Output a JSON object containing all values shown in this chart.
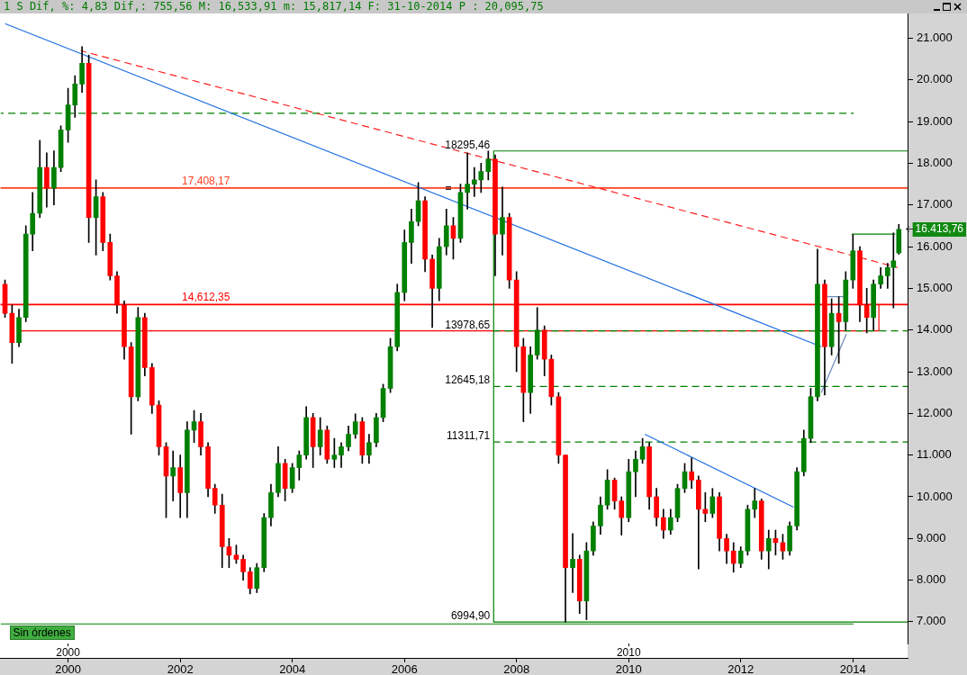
{
  "chart_data": {
    "type": "candlestick",
    "title": "1 S Dif, %: 4,83 Dif,: 755,56 M: 16,533,91 m: 15,817,14 F: 31-10-2014 P : 20,095,75",
    "x": [
      "1998-11-16",
      "1999-01-01",
      "1999-02-15",
      "1999-04-01",
      "1999-05-15",
      "1999-07-01",
      "1999-08-15",
      "1999-10-01",
      "1999-11-15",
      "2000-01-01",
      "2000-02-15",
      "2000-04-01",
      "2000-05-15",
      "2000-07-01",
      "2000-08-15",
      "2000-10-01",
      "2000-11-15",
      "2001-01-01",
      "2001-02-15",
      "2001-04-01",
      "2001-05-15",
      "2001-07-01",
      "2001-08-15",
      "2001-10-01",
      "2001-11-15",
      "2002-01-01",
      "2002-02-15",
      "2002-04-01",
      "2002-05-15",
      "2002-07-01",
      "2002-08-15",
      "2002-10-01",
      "2002-11-15",
      "2003-01-01",
      "2003-02-15",
      "2003-04-01",
      "2003-05-15",
      "2003-07-01",
      "2003-08-15",
      "2003-10-01",
      "2003-11-15",
      "2004-01-01",
      "2004-02-15",
      "2004-04-01",
      "2004-05-15",
      "2004-07-01",
      "2004-08-15",
      "2004-10-01",
      "2004-11-15",
      "2005-01-01",
      "2005-02-15",
      "2005-04-01",
      "2005-05-15",
      "2005-07-01",
      "2005-08-15",
      "2005-10-01",
      "2005-11-15",
      "2006-01-01",
      "2006-02-15",
      "2006-04-01",
      "2006-05-15",
      "2006-07-01",
      "2006-08-15",
      "2006-10-01",
      "2006-11-15",
      "2007-01-01",
      "2007-02-15",
      "2007-04-01",
      "2007-05-15",
      "2007-07-01",
      "2007-08-15",
      "2007-10-01",
      "2007-11-15",
      "2008-01-01",
      "2008-02-15",
      "2008-04-01",
      "2008-05-15",
      "2008-07-01",
      "2008-08-15",
      "2008-10-01",
      "2008-11-15",
      "2009-01-01",
      "2009-02-15",
      "2009-04-01",
      "2009-05-15",
      "2009-07-01",
      "2009-08-15",
      "2009-10-01",
      "2009-11-15",
      "2010-01-01",
      "2010-02-15",
      "2010-04-01",
      "2010-05-15",
      "2010-07-01",
      "2010-08-15",
      "2010-10-01",
      "2010-11-15",
      "2011-01-01",
      "2011-02-15",
      "2011-04-01",
      "2011-05-15",
      "2011-07-01",
      "2011-08-15",
      "2011-10-01",
      "2011-11-15",
      "2012-01-01",
      "2012-02-15",
      "2012-04-01",
      "2012-05-15",
      "2012-07-01",
      "2012-08-15",
      "2012-10-01",
      "2012-11-15",
      "2013-01-01",
      "2013-02-15",
      "2013-04-01",
      "2013-05-15",
      "2013-07-01",
      "2013-08-15",
      "2013-10-01",
      "2013-11-15",
      "2014-01-01",
      "2014-02-15",
      "2014-04-01",
      "2014-05-15",
      "2014-07-01",
      "2014-08-15",
      "2014-09-22",
      "2014-10-27"
    ],
    "ohlc": [
      [
        15100,
        15200,
        14300,
        14400
      ],
      [
        14400,
        14600,
        13200,
        13700
      ],
      [
        13700,
        14500,
        13600,
        14300
      ],
      [
        14300,
        16500,
        14200,
        16300
      ],
      [
        16300,
        17300,
        15900,
        16800
      ],
      [
        16800,
        18550,
        16700,
        17900
      ],
      [
        17900,
        18250,
        16950,
        17400
      ],
      [
        17400,
        18300,
        17000,
        17900
      ],
      [
        17900,
        18900,
        17800,
        18800
      ],
      [
        18800,
        19800,
        18500,
        19400
      ],
      [
        19400,
        20100,
        19100,
        19900
      ],
      [
        19900,
        20800,
        19700,
        20400
      ],
      [
        20400,
        20600,
        16100,
        16700
      ],
      [
        16700,
        17600,
        15800,
        17200
      ],
      [
        17200,
        17300,
        15900,
        16100
      ],
      [
        16100,
        16300,
        15200,
        15300
      ],
      [
        15300,
        15400,
        14400,
        14600
      ],
      [
        14600,
        14700,
        13300,
        13600
      ],
      [
        13600,
        13700,
        11500,
        12400
      ],
      [
        12400,
        14540,
        12300,
        14300
      ],
      [
        14300,
        14400,
        12900,
        13100
      ],
      [
        13100,
        13200,
        12000,
        12200
      ],
      [
        12200,
        12300,
        11000,
        11200
      ],
      [
        11200,
        11300,
        9500,
        10500
      ],
      [
        10500,
        11100,
        9900,
        10700
      ],
      [
        10700,
        11000,
        9500,
        10100
      ],
      [
        10100,
        11800,
        9500,
        11600
      ],
      [
        11600,
        12070,
        11300,
        11800
      ],
      [
        11800,
        12000,
        11000,
        11200
      ],
      [
        11200,
        11300,
        10000,
        10200
      ],
      [
        10200,
        10300,
        9600,
        9800
      ],
      [
        9800,
        10060,
        8300,
        8800
      ],
      [
        8800,
        9000,
        8300,
        8600
      ],
      [
        8600,
        8840,
        8400,
        8500
      ],
      [
        8500,
        8600,
        8000,
        8200
      ],
      [
        8200,
        8300,
        7670,
        7800
      ],
      [
        7800,
        8400,
        7700,
        8300
      ],
      [
        8300,
        9600,
        8200,
        9500
      ],
      [
        9500,
        10300,
        9300,
        10100
      ],
      [
        10100,
        11200,
        10000,
        10800
      ],
      [
        10800,
        10900,
        9900,
        10200
      ],
      [
        10200,
        10800,
        10100,
        10700
      ],
      [
        10700,
        11100,
        10400,
        11000
      ],
      [
        11000,
        12160,
        10900,
        11900
      ],
      [
        11900,
        12000,
        10700,
        11200
      ],
      [
        11200,
        11900,
        11000,
        11600
      ],
      [
        11600,
        11700,
        10800,
        10900
      ],
      [
        10900,
        11400,
        10700,
        11000
      ],
      [
        11000,
        11300,
        10700,
        11200
      ],
      [
        11200,
        11700,
        11100,
        11500
      ],
      [
        11500,
        11990,
        11400,
        11800
      ],
      [
        11800,
        11900,
        10800,
        11000
      ],
      [
        11000,
        11500,
        10800,
        11300
      ],
      [
        11300,
        12000,
        11200,
        11900
      ],
      [
        11900,
        12700,
        11800,
        12600
      ],
      [
        12600,
        13800,
        12500,
        13600
      ],
      [
        13600,
        15100,
        13500,
        14900
      ],
      [
        14900,
        16400,
        14700,
        16100
      ],
      [
        16100,
        16900,
        15600,
        16600
      ],
      [
        16600,
        17540,
        16500,
        17100
      ],
      [
        17100,
        17200,
        15400,
        15700
      ],
      [
        15700,
        15800,
        14060,
        15000
      ],
      [
        15000,
        16200,
        14700,
        16000
      ],
      [
        16000,
        16900,
        15800,
        16500
      ],
      [
        16500,
        16700,
        15700,
        16200
      ],
      [
        16200,
        17500,
        16100,
        17300
      ],
      [
        17300,
        18250,
        16900,
        17500
      ],
      [
        17500,
        17900,
        17200,
        17600
      ],
      [
        17600,
        18000,
        17300,
        17800
      ],
      [
        17800,
        18295.46,
        17600,
        18100
      ],
      [
        18100,
        18200,
        15300,
        16300
      ],
      [
        16300,
        17430,
        15800,
        16700
      ],
      [
        16700,
        16800,
        15000,
        15200
      ],
      [
        15200,
        15400,
        13000,
        13600
      ],
      [
        13600,
        13800,
        11800,
        12500
      ],
      [
        12500,
        13600,
        12000,
        13400
      ],
      [
        13400,
        14540,
        13300,
        14000
      ],
      [
        14000,
        14100,
        12900,
        13300
      ],
      [
        13300,
        13400,
        12200,
        12400
      ],
      [
        12400,
        12500,
        10800,
        11000
      ],
      [
        11000,
        11000,
        6994.9,
        8300
      ],
      [
        8300,
        9120,
        7700,
        8500
      ],
      [
        8500,
        8600,
        7200,
        7500
      ],
      [
        7500,
        8900,
        7050,
        8700
      ],
      [
        8700,
        9400,
        8600,
        9300
      ],
      [
        9300,
        10000,
        9100,
        9800
      ],
      [
        9800,
        10650,
        9700,
        10400
      ],
      [
        10400,
        10450,
        9700,
        9900
      ],
      [
        9900,
        10000,
        9080,
        9500
      ],
      [
        9500,
        10900,
        9400,
        10600
      ],
      [
        10600,
        11100,
        10000,
        10900
      ],
      [
        10900,
        11400,
        10800,
        11200
      ],
      [
        11200,
        11300,
        9700,
        10000
      ],
      [
        10000,
        10200,
        9300,
        9500
      ],
      [
        9500,
        9700,
        9000,
        9200
      ],
      [
        9200,
        9700,
        9100,
        9500
      ],
      [
        9500,
        10300,
        9400,
        10200
      ],
      [
        10200,
        10800,
        10100,
        10600
      ],
      [
        10600,
        10930,
        10200,
        10400
      ],
      [
        10400,
        10500,
        8270,
        9700
      ],
      [
        9700,
        10100,
        9400,
        9600
      ],
      [
        9600,
        10200,
        9500,
        10000
      ],
      [
        10000,
        10100,
        8700,
        9000
      ],
      [
        9000,
        9100,
        8400,
        8700
      ],
      [
        8700,
        8900,
        8190,
        8400
      ],
      [
        8400,
        8800,
        8300,
        8700
      ],
      [
        8700,
        9800,
        8600,
        9700
      ],
      [
        9700,
        10200,
        9500,
        9900
      ],
      [
        9900,
        9950,
        8500,
        8700
      ],
      [
        8700,
        9200,
        8270,
        9000
      ],
      [
        9000,
        9200,
        8600,
        8900
      ],
      [
        8900,
        9100,
        8500,
        8700
      ],
      [
        8700,
        9400,
        8600,
        9300
      ],
      [
        9300,
        10700,
        9200,
        10600
      ],
      [
        10600,
        11600,
        10500,
        11400
      ],
      [
        11400,
        12600,
        11300,
        12400
      ],
      [
        12400,
        15940,
        12300,
        15100
      ],
      [
        15100,
        15200,
        12440,
        13600
      ],
      [
        13600,
        14750,
        13400,
        14400
      ],
      [
        14400,
        14800,
        13200,
        14200
      ],
      [
        14200,
        15400,
        14000,
        15200
      ],
      [
        15200,
        16290,
        15000,
        15900
      ],
      [
        15900,
        16000,
        14200,
        14600
      ],
      [
        14600,
        15000,
        13930,
        14300
      ],
      [
        14300,
        15200,
        14000,
        15100
      ],
      [
        15100,
        15500,
        15000,
        15300
      ],
      [
        15300,
        15600,
        15000,
        15500
      ],
      [
        15500,
        16330,
        14530,
        15660
      ],
      [
        15850,
        16533.91,
        15817.14,
        16413.76
      ]
    ],
    "colors": [
      "#ff0000",
      "#ff0000",
      "#008000",
      "#008000",
      "#008000",
      "#008000",
      "#ff0000",
      "#008000",
      "#008000",
      "#008000",
      "#008000",
      "#008000",
      "#ff0000",
      "#008000",
      "#ff0000",
      "#ff0000",
      "#ff0000",
      "#ff0000",
      "#ff0000",
      "#008000",
      "#ff0000",
      "#ff0000",
      "#ff0000",
      "#ff0000",
      "#008000",
      "#ff0000",
      "#008000",
      "#008000",
      "#ff0000",
      "#ff0000",
      "#ff0000",
      "#ff0000",
      "#ff0000",
      "#ff0000",
      "#ff0000",
      "#ff0000",
      "#008000",
      "#008000",
      "#008000",
      "#008000",
      "#ff0000",
      "#008000",
      "#008000",
      "#008000",
      "#ff0000",
      "#008000",
      "#ff0000",
      "#008000",
      "#008000",
      "#008000",
      "#008000",
      "#ff0000",
      "#008000",
      "#008000",
      "#008000",
      "#008000",
      "#008000",
      "#008000",
      "#008000",
      "#008000",
      "#ff0000",
      "#ff0000",
      "#008000",
      "#008000",
      "#ff0000",
      "#008000",
      "#008000",
      "#008000",
      "#008000",
      "#008000",
      "#ff0000",
      "#008000",
      "#ff0000",
      "#ff0000",
      "#ff0000",
      "#008000",
      "#008000",
      "#ff0000",
      "#ff0000",
      "#ff0000",
      "#ff0000",
      "#008000",
      "#ff0000",
      "#008000",
      "#008000",
      "#008000",
      "#008000",
      "#ff0000",
      "#ff0000",
      "#008000",
      "#008000",
      "#008000",
      "#ff0000",
      "#ff0000",
      "#ff0000",
      "#008000",
      "#008000",
      "#008000",
      "#ff0000",
      "#ff0000",
      "#ff0000",
      "#008000",
      "#ff0000",
      "#ff0000",
      "#ff0000",
      "#008000",
      "#008000",
      "#008000",
      "#ff0000",
      "#008000",
      "#ff0000",
      "#ff0000",
      "#008000",
      "#008000",
      "#008000",
      "#008000",
      "#008000",
      "#ff0000",
      "#008000",
      "#ff0000",
      "#008000",
      "#008000",
      "#ff0000",
      "#ff0000",
      "#008000",
      "#008000",
      "#008000",
      "#008000",
      "#008000"
    ],
    "series": [
      {
        "type": "line",
        "x": [
          "1998-11-16",
          "2013-06-09"
        ],
        "values": [
          21350,
          13600
        ],
        "color": "#1f6fe0"
      },
      {
        "type": "line",
        "x": [
          "2000-03-24",
          "2014-10-19"
        ],
        "values": [
          20700,
          15500
        ],
        "color": "#ff2020",
        "line_style": "dashed"
      },
      {
        "type": "line",
        "x": [
          "2010-04-16",
          "2012-12-10"
        ],
        "values": [
          11500,
          9750
        ],
        "color": "#1f6fe0"
      },
      {
        "type": "line",
        "x": [
          "2013-06-09",
          "2013-11-19"
        ],
        "values": [
          12500,
          13900
        ],
        "color": "#6a86b8"
      },
      {
        "type": "line",
        "x": [
          "2013-07-19",
          "2013-11-02"
        ],
        "values": [
          14800,
          14800
        ],
        "color": "#6a86b8"
      },
      {
        "type": "line",
        "x": [
          "2013-12-24",
          "2014-10-03"
        ],
        "values": [
          16300,
          16300
        ],
        "color": "#008000"
      },
      {
        "type": "line",
        "x": [
          "1998-10-18",
          "2014-01-06"
        ],
        "values": [
          19200,
          19200
        ],
        "color": "#008000",
        "line_style": "dashed"
      },
      {
        "type": "line",
        "x": [
          "1998-10-18",
          "2014-01-06"
        ],
        "values": [
          6950,
          6950
        ],
        "color": "#008000"
      },
      {
        "type": "line",
        "x": [
          "2014-12-23",
          "2007-08-05",
          "2007-08-05",
          "2014-12-23"
        ],
        "values": [
          18295.46,
          18295.46,
          6994.9,
          6994.9
        ],
        "color": "#008000"
      },
      {
        "type": "line",
        "x": [
          "2007-08-05",
          "2014-12-23"
        ],
        "values": [
          13978.65,
          13978.65
        ],
        "color": "#008000",
        "line_style": "dashed"
      },
      {
        "type": "line",
        "x": [
          "2007-08-05",
          "2014-12-23"
        ],
        "values": [
          12645.18,
          12645.18
        ],
        "color": "#008000",
        "line_style": "dashed"
      },
      {
        "type": "line",
        "x": [
          "2007-08-05",
          "2014-12-23"
        ],
        "values": [
          11311.71,
          11311.71
        ],
        "color": "#008000",
        "line_style": "dashed"
      },
      {
        "type": "line",
        "x": [
          "1999-02-12",
          "2014-06-19",
          "2014-06-19"
        ],
        "values": [
          13978.65,
          13978.65,
          14612.35
        ],
        "color": "#ff0000"
      }
    ],
    "ref_lines": [
      {
        "axis": "y",
        "value": 17408.17,
        "label": "17,408,17",
        "color": "#ff4020"
      },
      {
        "axis": "y",
        "value": 14612.35,
        "label": "14,612,35",
        "color": "#ff0000"
      }
    ],
    "annotations": [
      "Sin órdenes",
      {
        "text": "18295,46",
        "x": "2007-08-05",
        "y": 18295.46
      },
      {
        "text": "13978,65",
        "x": "2007-08-05",
        "y": 13978.65
      },
      {
        "text": "12645,18",
        "x": "2007-08-05",
        "y": 12645.18
      },
      {
        "text": "11311,71",
        "x": "2007-08-05",
        "y": 11311.71
      },
      {
        "text": "6994,90",
        "x": "2007-08-05",
        "y": 6994.9
      },
      "16.413,76"
    ],
    "xlim": [
      "1998-10-18",
      "2014-12-23"
    ],
    "xticks": [
      "2000",
      "2002",
      "2004",
      "2006",
      "2008",
      "2010",
      "2012",
      "2014"
    ],
    "x2lim": [
      "1998-10-18",
      "2014-12-23"
    ],
    "x2ticks": [
      "2000",
      "2010"
    ],
    "ylim": [
      6480,
      21580
    ],
    "yticks": [
      {
        "value": 7000,
        "label": "7.000"
      },
      {
        "value": 8000,
        "label": "8.000"
      },
      {
        "value": 9000,
        "label": "9.000"
      },
      {
        "value": 10000,
        "label": "10.000"
      },
      {
        "value": 11000,
        "label": "11.000"
      },
      {
        "value": 12000,
        "label": "12.000"
      },
      {
        "value": 13000,
        "label": "13.000"
      },
      {
        "value": 14000,
        "label": "14.000"
      },
      {
        "value": 15000,
        "label": "15.000"
      },
      {
        "value": 16000,
        "label": "16.000"
      },
      {
        "value": 17000,
        "label": "17.000"
      },
      {
        "value": 18000,
        "label": "18.000"
      },
      {
        "value": 19000,
        "label": "19.000"
      },
      {
        "value": 20000,
        "label": "20.000"
      },
      {
        "value": 21000,
        "label": "21.000"
      }
    ]
  }
}
